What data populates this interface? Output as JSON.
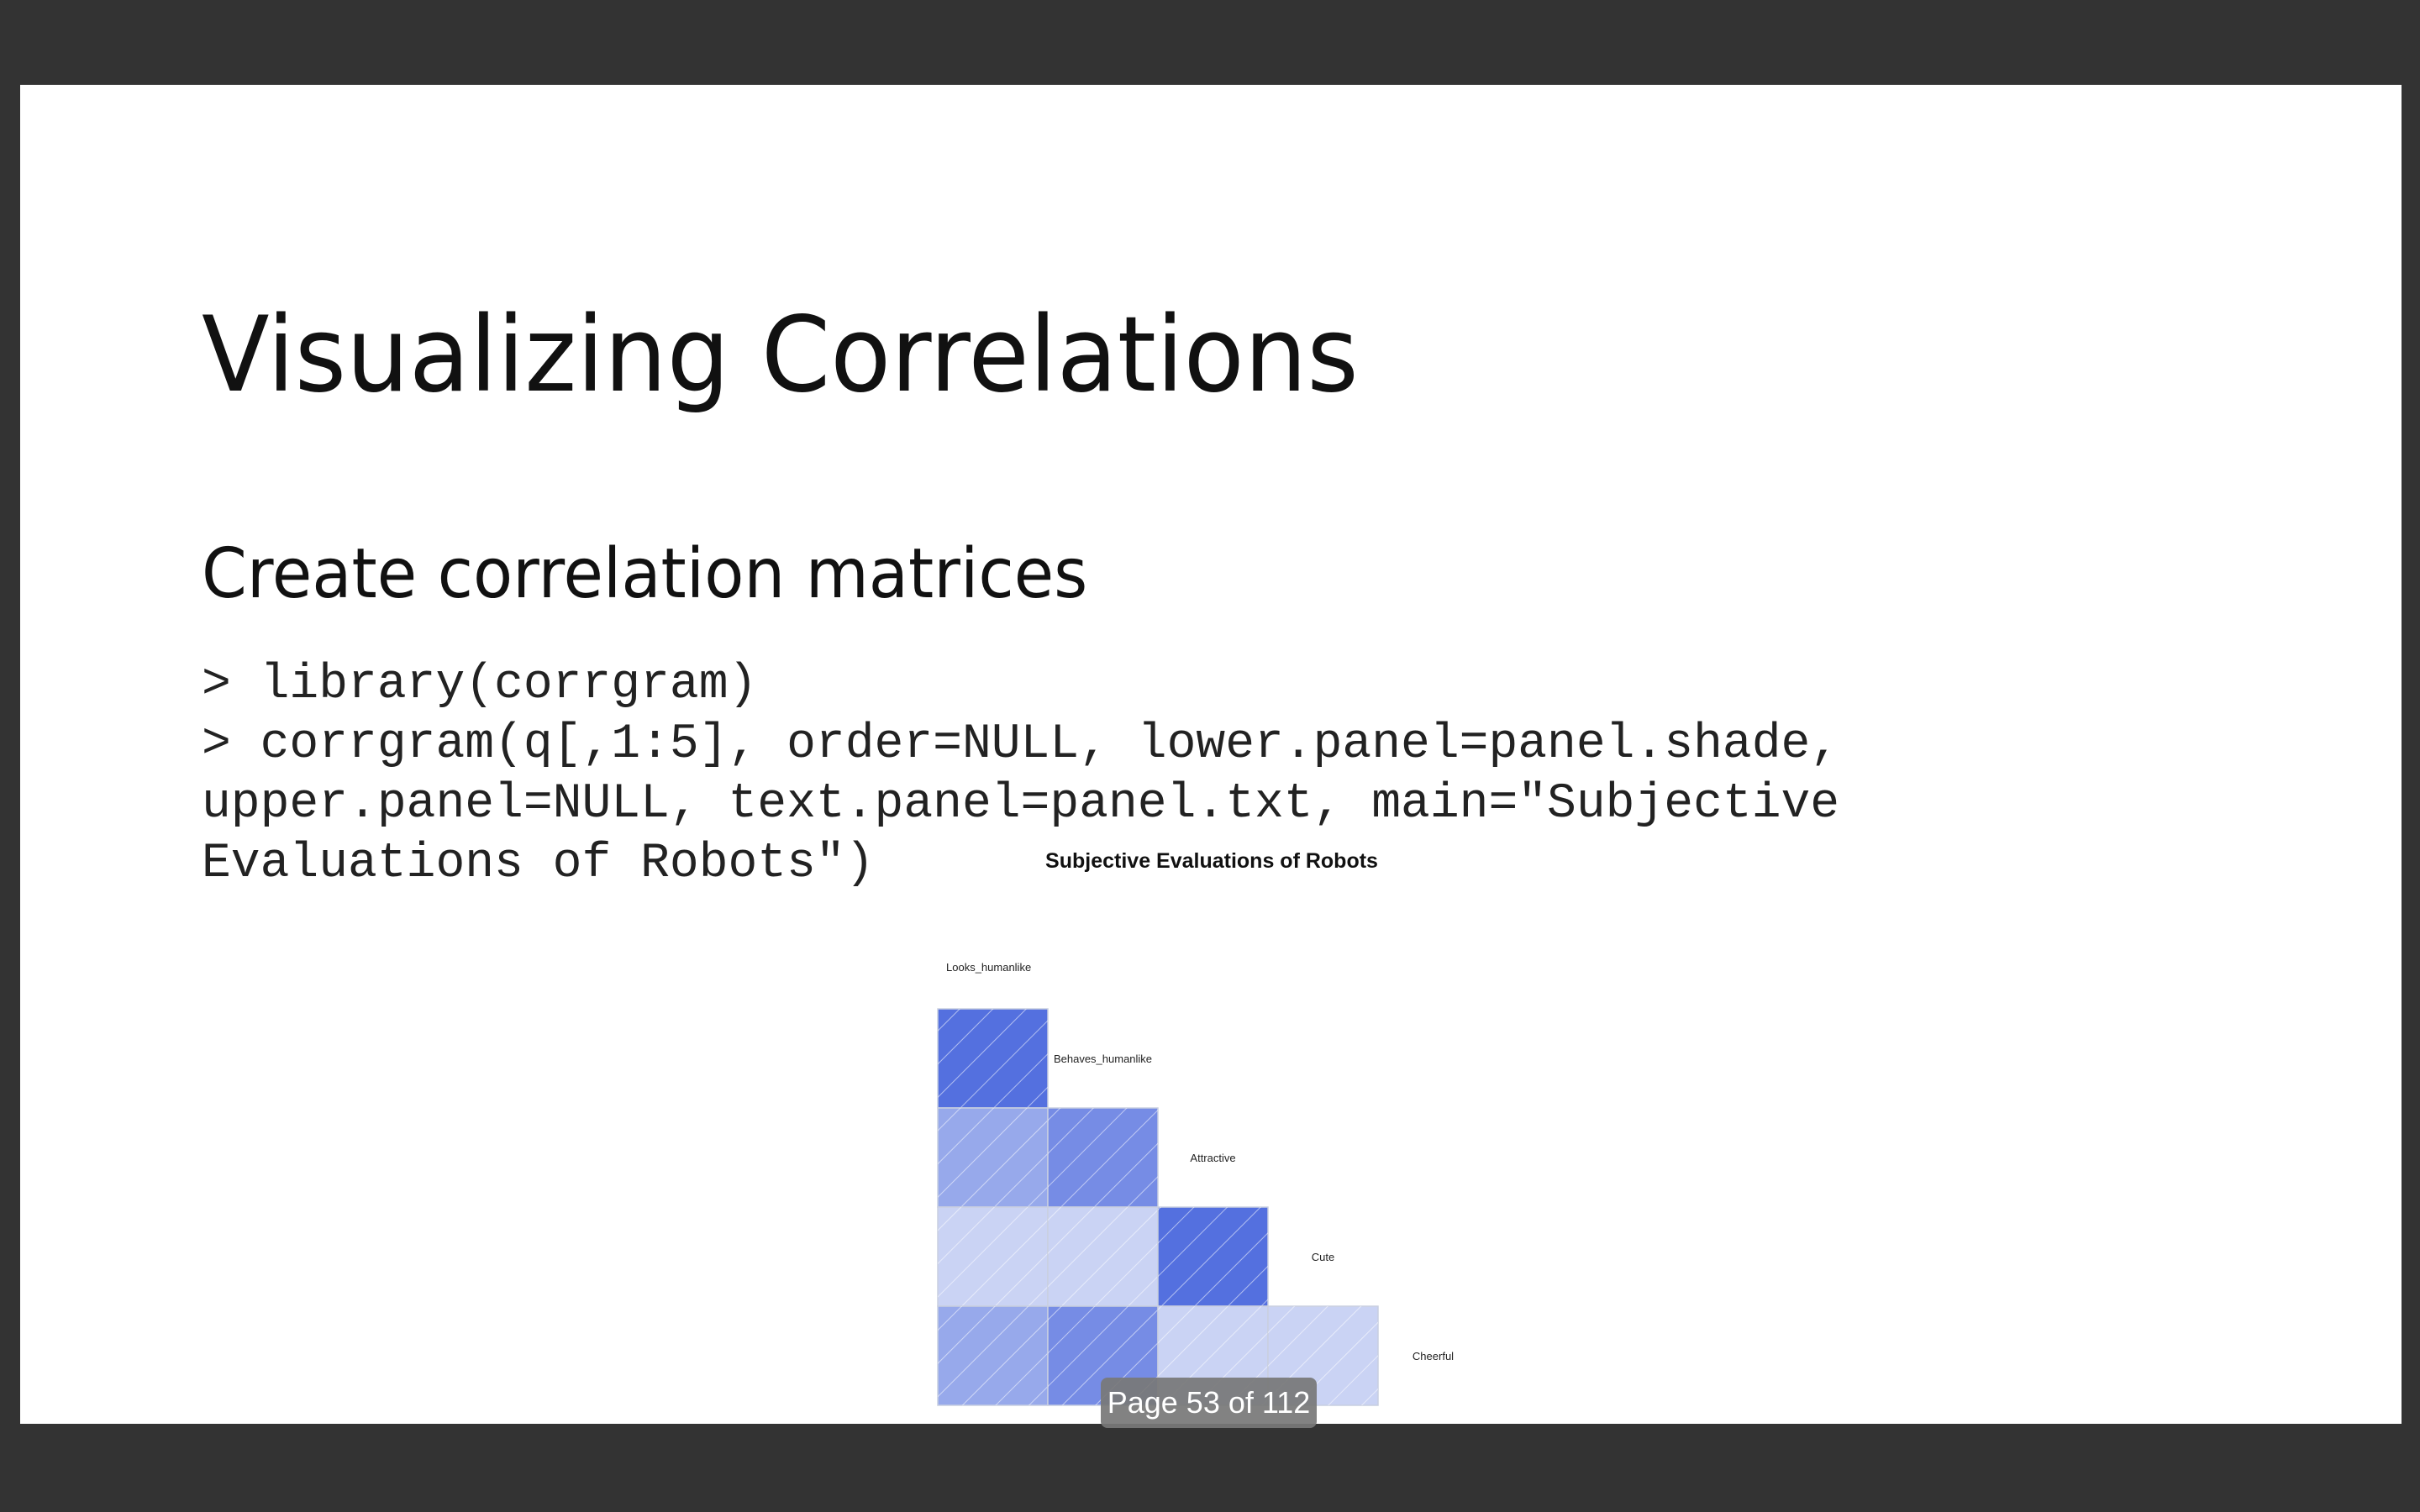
{
  "slide": {
    "title": "Visualizing Correlations",
    "subtitle": "Create correlation matrices",
    "code_lines": [
      "> library(corrgram)",
      "> corrgram(q[,1:5], order=NULL, lower.panel=panel.shade,",
      "upper.panel=NULL, text.panel=panel.txt, main=\"Subjective",
      "Evaluations of Robots\")"
    ]
  },
  "viewer": {
    "page_indicator": "Page 53 of 112"
  },
  "colors": {
    "background": "#333333",
    "slide": "#ffffff",
    "shade_strong": "#3b5bdb",
    "shade_light": "#e3e8f8"
  },
  "chart_data": {
    "type": "heatmap",
    "title": "Subjective Evaluations of Robots",
    "variables": [
      "Looks_humanlike",
      "Behaves_humanlike",
      "Attractive",
      "Cute",
      "Cheerful"
    ],
    "layout": "lower-triangle",
    "shading": "blue = positive correlation, diagonal hatching",
    "cells": [
      {
        "row": "Behaves_humanlike",
        "col": "Looks_humanlike",
        "strength": 0.85
      },
      {
        "row": "Attractive",
        "col": "Looks_humanlike",
        "strength": 0.45
      },
      {
        "row": "Attractive",
        "col": "Behaves_humanlike",
        "strength": 0.65
      },
      {
        "row": "Cute",
        "col": "Looks_humanlike",
        "strength": 0.15
      },
      {
        "row": "Cute",
        "col": "Behaves_humanlike",
        "strength": 0.15
      },
      {
        "row": "Cute",
        "col": "Attractive",
        "strength": 0.85
      },
      {
        "row": "Cheerful",
        "col": "Looks_humanlike",
        "strength": 0.45
      },
      {
        "row": "Cheerful",
        "col": "Behaves_humanlike",
        "strength": 0.65
      },
      {
        "row": "Cheerful",
        "col": "Attractive",
        "strength": 0.15
      },
      {
        "row": "Cheerful",
        "col": "Cute",
        "strength": 0.15
      }
    ]
  }
}
